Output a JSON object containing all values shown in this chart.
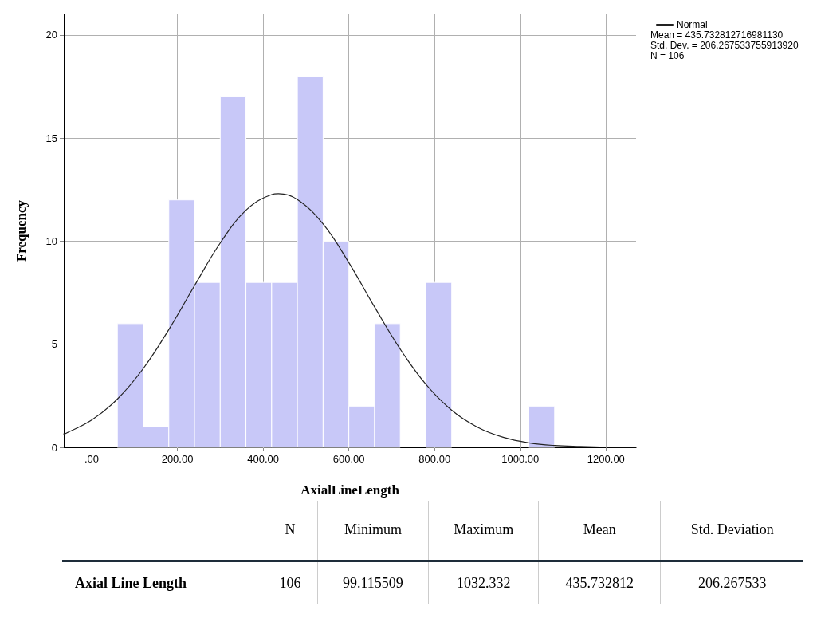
{
  "chart_data": [
    {
      "type": "histogram",
      "xlabel": "AxialLineLength",
      "ylabel": "Frequency",
      "bins": [
        60,
        120,
        180,
        240,
        300,
        360,
        420,
        480,
        540,
        600,
        660,
        720,
        780,
        840,
        900,
        960,
        1020,
        1080
      ],
      "values": [
        6,
        1,
        12,
        8,
        17,
        8,
        8,
        18,
        10,
        2,
        6,
        0,
        8,
        0,
        0,
        0,
        2
      ],
      "color": "#c8c8f8",
      "series": [
        {
          "type": "line",
          "name": "Normal",
          "color": "#222222",
          "x": [
            -65,
            -60,
            0,
            60,
            120,
            180,
            240,
            300,
            360,
            420,
            435.7,
            480,
            540,
            600,
            660,
            720,
            780,
            840,
            900,
            960,
            1020,
            1080,
            1140,
            1200,
            1270
          ],
          "values": [
            0.65,
            0.68,
            1.32,
            2.34,
            3.81,
            5.71,
            7.84,
            9.91,
            11.5,
            12.26,
            12.3,
            12.02,
            10.83,
            8.96,
            6.81,
            4.76,
            3.05,
            1.8,
            0.98,
            0.49,
            0.22,
            0.09,
            0.04,
            0.01,
            0
          ]
        }
      ],
      "xlim": [
        -65,
        1270
      ],
      "xticks": [
        {
          "value": 0,
          "label": ".00"
        },
        {
          "value": 200,
          "label": "200.00"
        },
        {
          "value": 400,
          "label": "400.00"
        },
        {
          "value": 600,
          "label": "600.00"
        },
        {
          "value": 800,
          "label": "800.00"
        },
        {
          "value": 1000,
          "label": "1000.00"
        },
        {
          "value": 1200,
          "label": "1200.00"
        }
      ],
      "ylim": [
        0,
        21
      ],
      "yticks": [
        0,
        5,
        10,
        15,
        20
      ],
      "grid": true,
      "legend": "top right",
      "line_style": "solid",
      "marker": "none",
      "annotations": [
        "Mean = 435.732812716981130",
        "Std. Dev. = 206.267533755913920",
        "N = 106"
      ]
    },
    {
      "type": "other",
      "annotations": [
        "N",
        "Minimum",
        "Maximum",
        "Mean",
        "Std. Deviation",
        "Axial Line Length",
        "106",
        "99.115509",
        "1032.332",
        "435.732812",
        "206.267533"
      ]
    }
  ]
}
